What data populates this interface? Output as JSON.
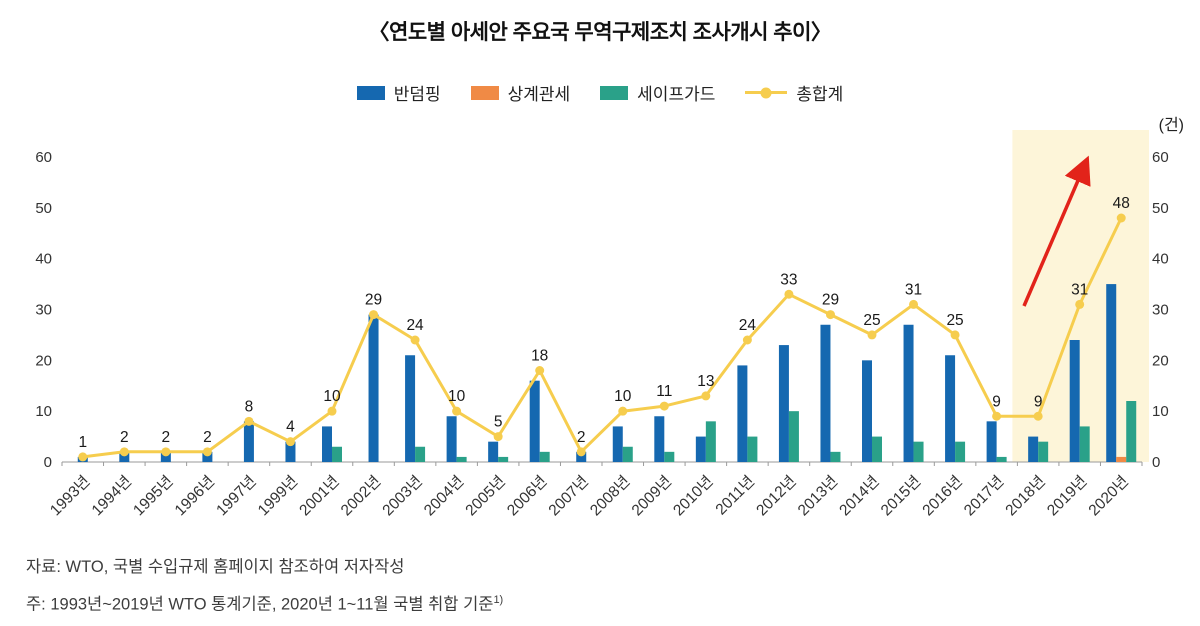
{
  "title": "〈연도별 아세안 주요국 무역구제조치 조사개시 추이〉",
  "unit_label": "(건)",
  "legend": [
    {
      "label": "반덤핑",
      "color": "#1568b0",
      "type": "bar"
    },
    {
      "label": "상계관세",
      "color": "#f08a45",
      "type": "bar"
    },
    {
      "label": "세이프가드",
      "color": "#2aa189",
      "type": "bar"
    },
    {
      "label": "총합계",
      "color": "#f6cd4e",
      "type": "line"
    }
  ],
  "footer": {
    "source": "자료: WTO, 국별 수입규제 홈페이지 참조하여 저자작성",
    "note": "주: 1993년~2019년 WTO 통계기준, 2020년 1~11월 국별 취합 기준",
    "note_sup": "1)"
  },
  "chart_data": {
    "type": "bar",
    "title": "연도별 아세안 주요국 무역구제조치 조사개시 추이",
    "xlabel": "",
    "ylabel": "건",
    "ylim": [
      0,
      60
    ],
    "yticks": [
      0,
      10,
      20,
      30,
      40,
      50,
      60
    ],
    "grid": false,
    "legend_position": "top",
    "categories": [
      "1993년",
      "1994년",
      "1995년",
      "1996년",
      "1997년",
      "1999년",
      "2001년",
      "2002년",
      "2003년",
      "2004년",
      "2005년",
      "2006년",
      "2007년",
      "2008년",
      "2009년",
      "2010년",
      "2011년",
      "2012년",
      "2013년",
      "2014년",
      "2015년",
      "2016년",
      "2017년",
      "2018년",
      "2019년",
      "2020년"
    ],
    "series": [
      {
        "name": "반덤핑",
        "type": "bar",
        "color": "#1568b0",
        "values": [
          1,
          2,
          2,
          2,
          8,
          4,
          7,
          29,
          21,
          9,
          4,
          16,
          2,
          7,
          9,
          5,
          19,
          23,
          27,
          20,
          27,
          21,
          8,
          5,
          24,
          35
        ]
      },
      {
        "name": "상계관세",
        "type": "bar",
        "color": "#f08a45",
        "values": [
          0,
          0,
          0,
          0,
          0,
          0,
          0,
          0,
          0,
          0,
          0,
          0,
          0,
          0,
          0,
          0,
          0,
          0,
          0,
          0,
          0,
          0,
          0,
          0,
          0,
          1
        ]
      },
      {
        "name": "세이프가드",
        "type": "bar",
        "color": "#2aa189",
        "values": [
          0,
          0,
          0,
          0,
          0,
          0,
          3,
          0,
          3,
          1,
          1,
          2,
          0,
          3,
          2,
          8,
          5,
          10,
          2,
          5,
          4,
          4,
          1,
          4,
          7,
          12
        ]
      },
      {
        "name": "총합계",
        "type": "line",
        "color": "#f6cd4e",
        "data_labels": true,
        "values": [
          1,
          2,
          2,
          2,
          8,
          4,
          10,
          29,
          24,
          10,
          5,
          18,
          2,
          10,
          11,
          13,
          24,
          33,
          29,
          25,
          31,
          25,
          9,
          9,
          31,
          48
        ]
      }
    ],
    "highlight_region": {
      "from": "2018년",
      "to": "2020년",
      "color": "#fdf5d9"
    },
    "annotation_arrow": {
      "color": "#e2231a",
      "direction": "up-right"
    }
  }
}
